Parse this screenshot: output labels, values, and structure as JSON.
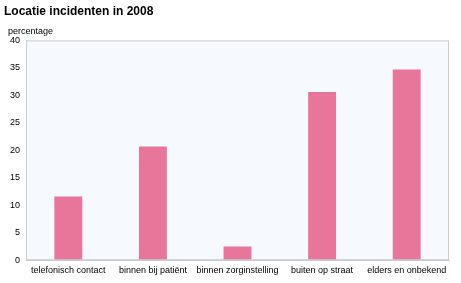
{
  "chart_data": {
    "type": "bar",
    "title": "Locatie incidenten in 2008",
    "ylabel": "percentage",
    "categories": [
      "telefonisch contact",
      "binnen bij patiënt",
      "binnen zorginstelling",
      "buiten op straat",
      "elders en onbekend"
    ],
    "values": [
      11.6,
      20.7,
      2.5,
      30.6,
      34.7
    ],
    "color": "#e8769a",
    "ylim": [
      0,
      40
    ],
    "yticks": [
      0,
      5,
      10,
      15,
      20,
      25,
      30,
      35,
      40
    ],
    "grid": false
  }
}
